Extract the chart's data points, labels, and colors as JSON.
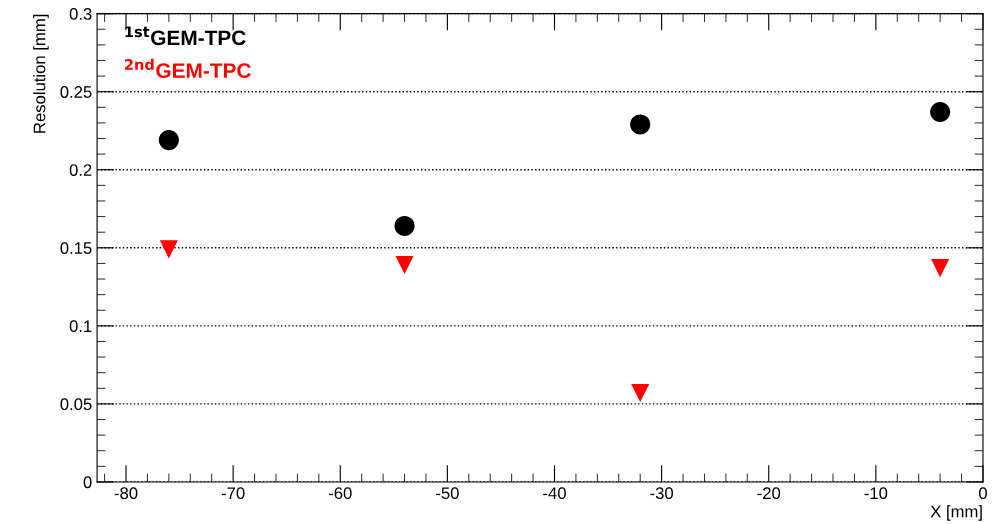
{
  "chart_data": {
    "type": "scatter",
    "xlabel": "X [mm]",
    "ylabel": "Resolution [mm]",
    "x": [
      -76,
      -54,
      -32,
      -4
    ],
    "series": [
      {
        "name": "$^{1st}$GEM-TPC",
        "color": "#000000",
        "marker": "circle",
        "values": [
          0.219,
          0.164,
          0.229,
          0.237
        ]
      },
      {
        "name": "$^{2nd}$GEM-TPC",
        "color": "#ff0000",
        "marker": "triangle",
        "values": [
          0.149,
          0.139,
          0.057,
          0.137
        ]
      }
    ],
    "xlim": [
      -82.7,
      0
    ],
    "ylim": [
      0,
      0.3
    ],
    "xticks": [
      -80,
      -70,
      -60,
      -50,
      -40,
      -30,
      -20,
      -10,
      0
    ],
    "yticks": [
      0,
      0.05,
      0.1,
      0.15,
      0.2,
      0.25,
      0.3
    ],
    "grid": "y",
    "legend": "top left"
  }
}
